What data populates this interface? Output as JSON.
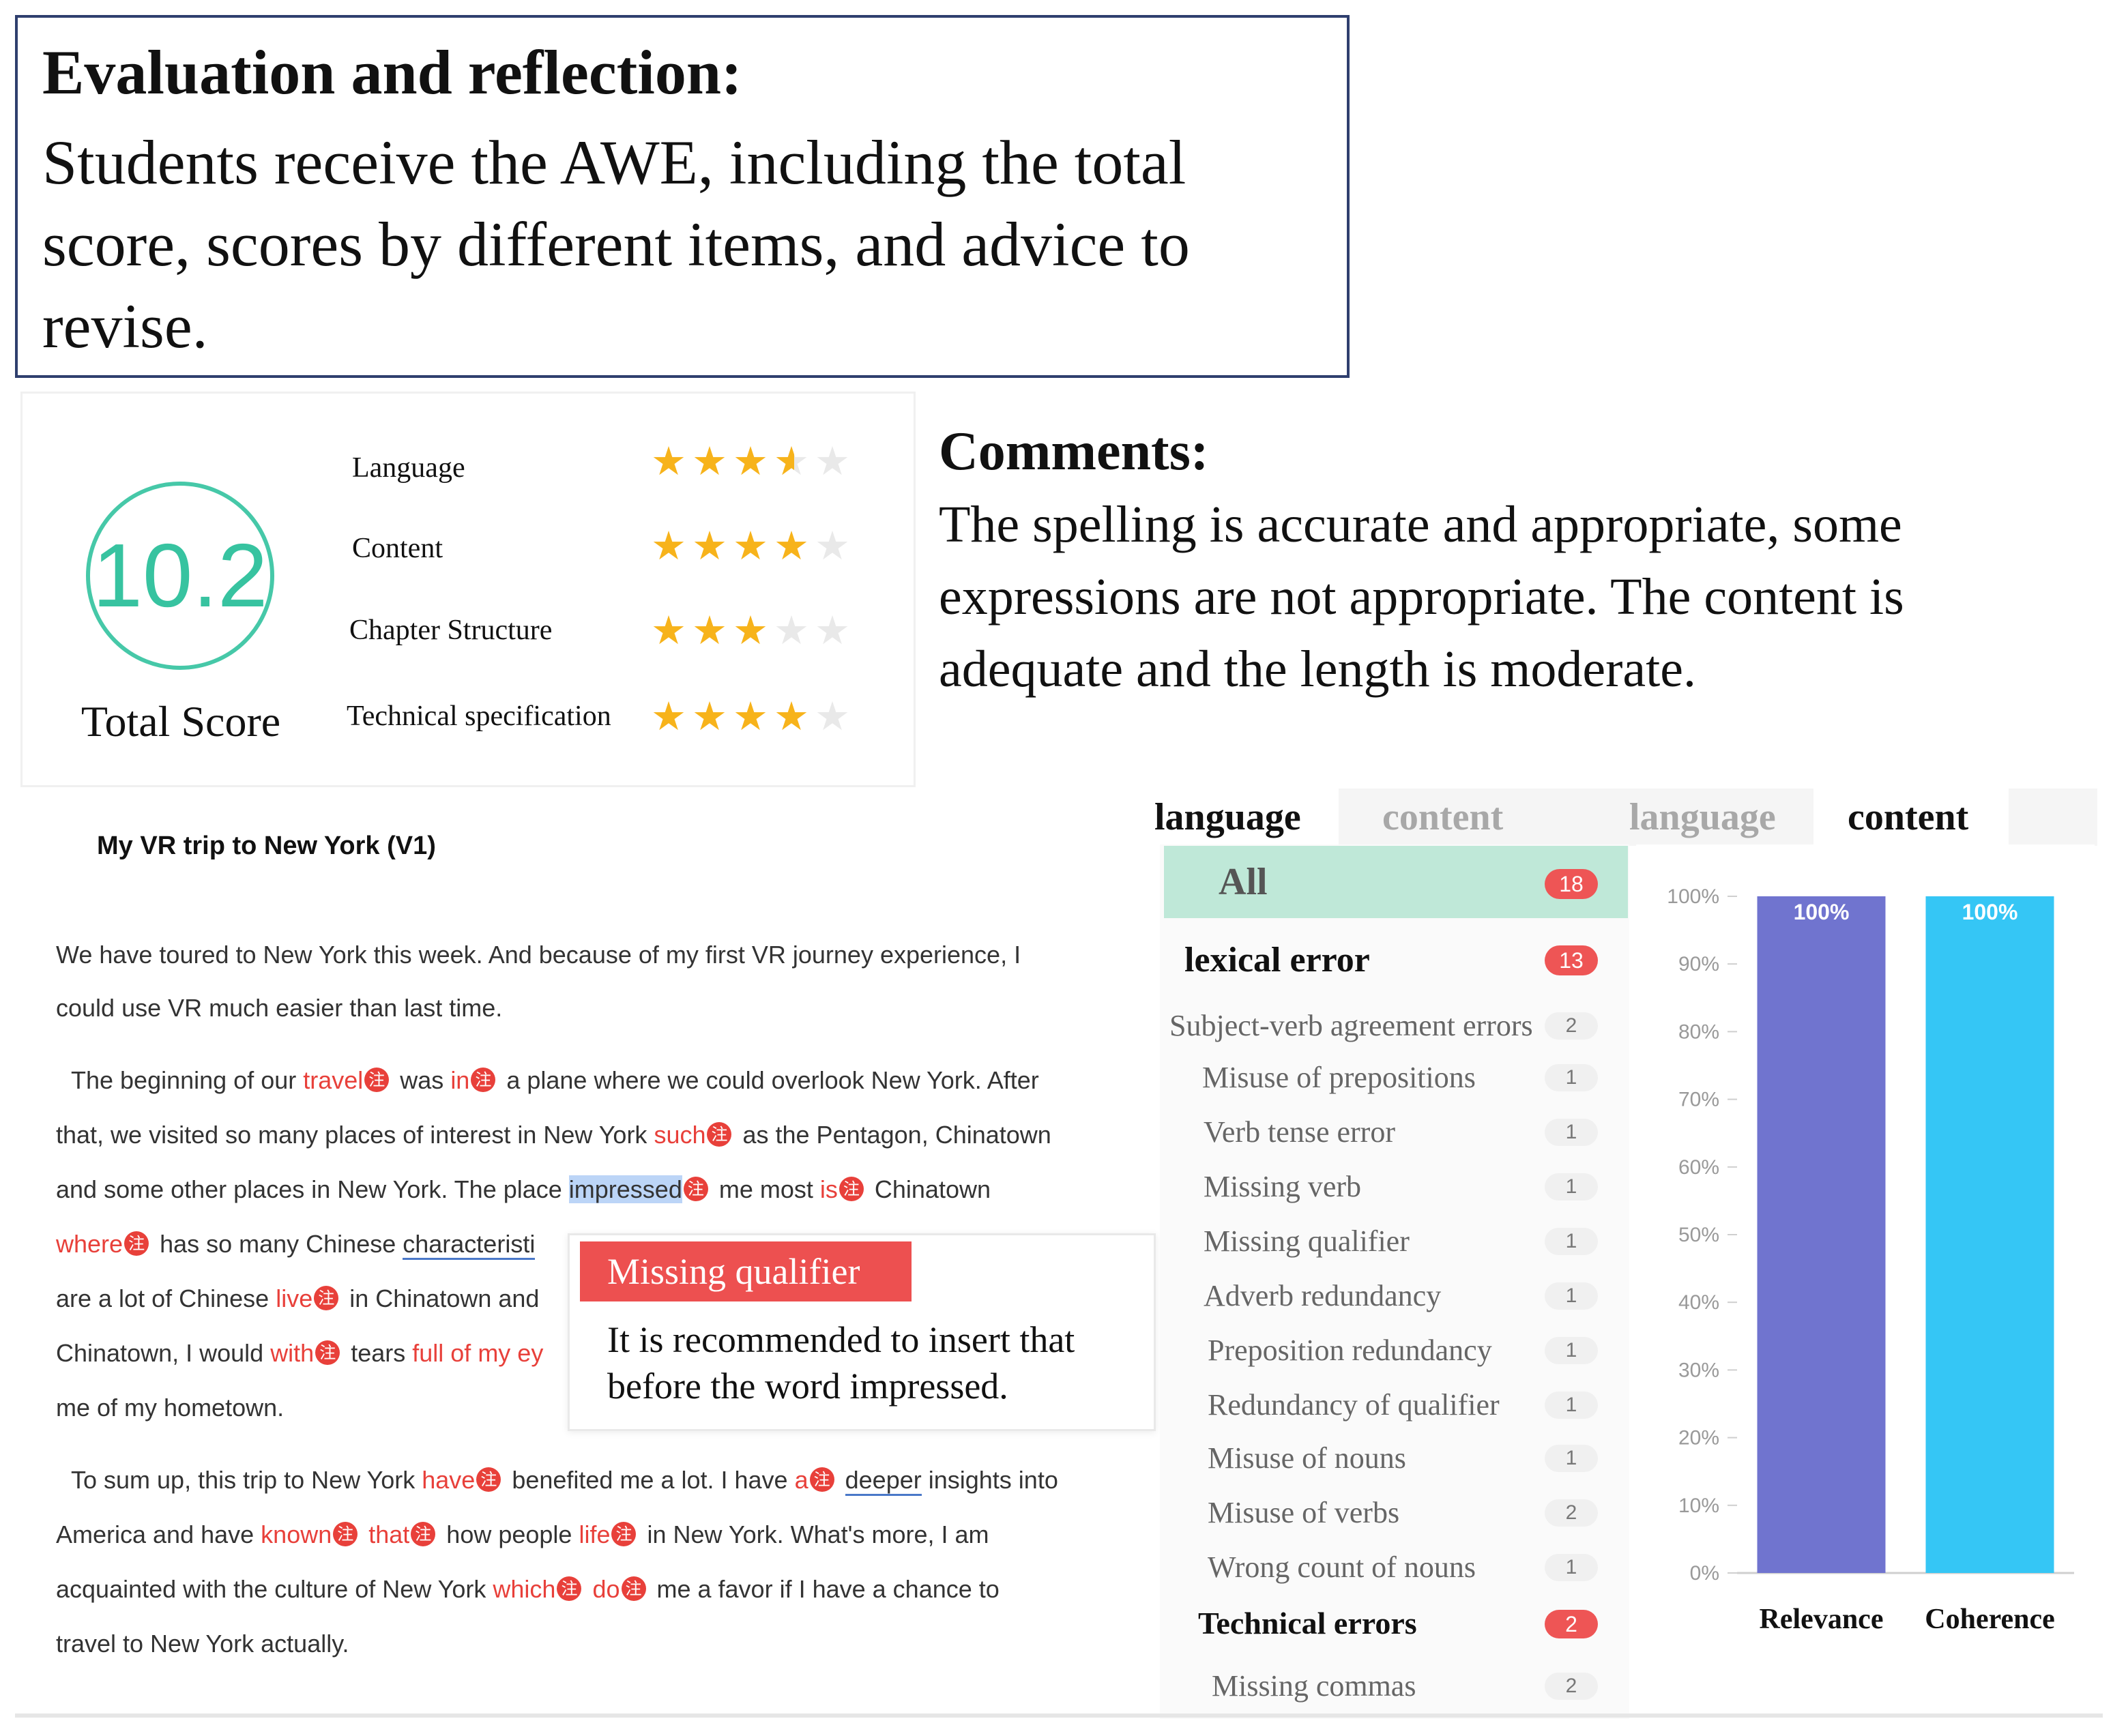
{
  "header": {
    "title": "Evaluation and reflection:",
    "body": "Students receive the AWE, including the total score, scores by different items, and advice to revise."
  },
  "score": {
    "value": "10.2",
    "label": "Total Score",
    "accent_color": "#37c3a0",
    "criteria": [
      {
        "label": "Language",
        "stars": 3.5,
        "max": 5
      },
      {
        "label": "Content",
        "stars": 4,
        "max": 5
      },
      {
        "label": "Chapter Structure",
        "stars": 3,
        "max": 5
      },
      {
        "label": "Technical specification",
        "stars": 4,
        "max": 5
      }
    ]
  },
  "comments": {
    "title": "Comments:",
    "text": "The spelling is accurate and appropriate, some expressions are not appropriate. The content is adequate and the length is moderate."
  },
  "essay": {
    "title": "My VR trip to New York (V1)",
    "marker_glyph": "注",
    "error_color": "#e8403a",
    "lines": [
      [
        {
          "t": "We have toured to New York this week. And because of my first VR journey experience, I"
        }
      ],
      [
        {
          "t": "could use VR much easier than last time."
        }
      ],
      [
        {
          "t": "The beginning of our "
        },
        {
          "t": "travel",
          "e": 1
        },
        {
          "m": 1
        },
        {
          "t": " was "
        },
        {
          "t": "in",
          "e": 1
        },
        {
          "m": 1
        },
        {
          "t": " a plane where we could overlook New York. After"
        }
      ],
      [
        {
          "t": "that, we visited so many places of interest in New York "
        },
        {
          "t": "such",
          "e": 1
        },
        {
          "m": 1
        },
        {
          "t": " as the Pentagon, Chinatown"
        }
      ],
      [
        {
          "t": "and some other places in New York. The place "
        },
        {
          "t": "impressed",
          "hl": 1
        },
        {
          "m": 1
        },
        {
          "t": " me most "
        },
        {
          "t": "is",
          "e": 1
        },
        {
          "m": 1
        },
        {
          "t": " Chinatown"
        }
      ],
      [
        {
          "t": "where",
          "e": 1
        },
        {
          "m": 1
        },
        {
          "t": " has so many Chinese "
        },
        {
          "t": "characteristi",
          "ul": 1
        }
      ],
      [
        {
          "t": "are a lot of Chinese "
        },
        {
          "t": "live",
          "e": 1
        },
        {
          "m": 1
        },
        {
          "t": " in Chinatown and"
        }
      ],
      [
        {
          "t": "Chinatown, I would "
        },
        {
          "t": "with",
          "e": 1
        },
        {
          "m": 1
        },
        {
          "t": " tears "
        },
        {
          "t": "full of my ey",
          "e": 1
        }
      ],
      [
        {
          "t": "me of my hometown."
        }
      ],
      [
        {
          "t": "To sum up, this trip to New York "
        },
        {
          "t": "have",
          "e": 1
        },
        {
          "m": 1
        },
        {
          "t": " benefited me a lot. I have "
        },
        {
          "t": "a",
          "e": 1
        },
        {
          "m": 1
        },
        {
          "t": " "
        },
        {
          "t": "deeper",
          "ul": 1
        },
        {
          "t": " insights into"
        }
      ],
      [
        {
          "t": "America and have "
        },
        {
          "t": "known",
          "e": 1
        },
        {
          "m": 1
        },
        {
          "t": " "
        },
        {
          "t": "that",
          "e": 1
        },
        {
          "m": 1
        },
        {
          "t": " how people "
        },
        {
          "t": "life",
          "e": 1
        },
        {
          "m": 1
        },
        {
          "t": " in New York. What's more, I am"
        }
      ],
      [
        {
          "t": "acquainted with the culture of New York "
        },
        {
          "t": "which",
          "e": 1
        },
        {
          "m": 1
        },
        {
          "t": " "
        },
        {
          "t": "do",
          "e": 1
        },
        {
          "m": 1
        },
        {
          "t": " me a favor if I have a chance to"
        }
      ],
      [
        {
          "t": "travel to New York actually."
        }
      ]
    ]
  },
  "tooltip": {
    "title": "Missing qualifier",
    "body": "It is recommended to insert that before the word impressed."
  },
  "tabs_left": [
    "language",
    "content"
  ],
  "tabs_right": [
    "language",
    "content"
  ],
  "error_list": {
    "all": {
      "label": "All",
      "count": "18"
    },
    "lexical": {
      "label": "lexical error",
      "count": "13"
    },
    "lexical_items": [
      {
        "label": "Subject-verb agreement errors",
        "count": "2"
      },
      {
        "label": "Misuse of prepositions",
        "count": "1"
      },
      {
        "label": "Verb tense error",
        "count": "1"
      },
      {
        "label": "Missing verb",
        "count": "1"
      },
      {
        "label": "Missing qualifier",
        "count": "1"
      },
      {
        "label": "Adverb redundancy",
        "count": "1"
      },
      {
        "label": "Preposition redundancy",
        "count": "1"
      },
      {
        "label": "Redundancy of qualifier",
        "count": "1"
      },
      {
        "label": "Misuse of nouns",
        "count": "1"
      },
      {
        "label": "Misuse of verbs",
        "count": "2"
      },
      {
        "label": "Wrong count of nouns",
        "count": "1"
      }
    ],
    "technical": {
      "label": "Technical errors",
      "count": "2"
    },
    "technical_items": [
      {
        "label": "Missing commas",
        "count": "2"
      }
    ]
  },
  "chart_data": {
    "type": "bar",
    "categories": [
      "Relevance",
      "Coherence"
    ],
    "values": [
      100,
      100
    ],
    "value_labels": [
      "100%",
      "100%"
    ],
    "colors": [
      "#7074cf",
      "#35c6f5"
    ],
    "ylim": [
      0,
      100
    ],
    "yticks": [
      "0%",
      "10%",
      "20%",
      "30%",
      "40%",
      "50%",
      "60%",
      "70%",
      "80%",
      "90%",
      "100%"
    ],
    "title": "",
    "xlabel": "",
    "ylabel": ""
  }
}
